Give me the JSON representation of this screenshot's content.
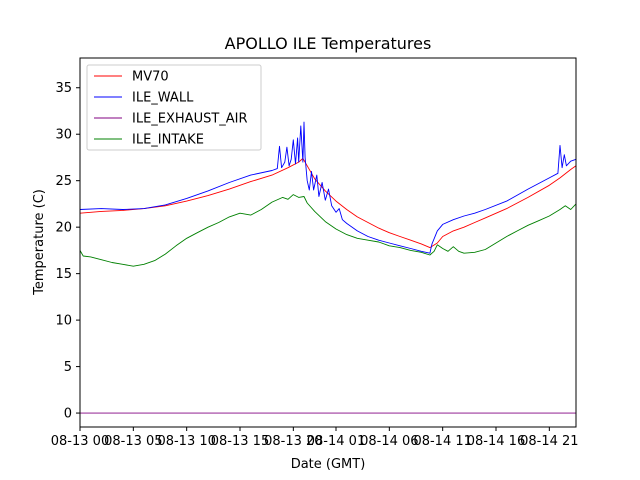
{
  "chart_data": {
    "type": "line",
    "title": "APOLLO ILE Temperatures",
    "xlabel": "Date (GMT)",
    "ylabel": "Temperature (C)",
    "xlim_hours": [
      0,
      46.5
    ],
    "ylim": [
      -1.5,
      38.2
    ],
    "yticks": [
      0,
      5,
      10,
      15,
      20,
      25,
      30,
      35
    ],
    "xticks": [
      {
        "hour": 0,
        "label": "08-13 00"
      },
      {
        "hour": 5,
        "label": "08-13 05"
      },
      {
        "hour": 10,
        "label": "08-13 10"
      },
      {
        "hour": 15,
        "label": "08-13 15"
      },
      {
        "hour": 20,
        "label": "08-13 20"
      },
      {
        "hour": 24,
        "label": "08-14 01"
      },
      {
        "hour": 29,
        "label": "08-14 06"
      },
      {
        "hour": 34,
        "label": "08-14 11"
      },
      {
        "hour": 39,
        "label": "08-14 16"
      },
      {
        "hour": 44,
        "label": "08-14 21"
      }
    ],
    "legend_position": "upper-left",
    "series": [
      {
        "name": "MV70",
        "color": "#ff0000",
        "points": [
          [
            0,
            21.5
          ],
          [
            2,
            21.7
          ],
          [
            4,
            21.8
          ],
          [
            6,
            22.0
          ],
          [
            8,
            22.3
          ],
          [
            10,
            22.8
          ],
          [
            12,
            23.4
          ],
          [
            14,
            24.1
          ],
          [
            16,
            24.9
          ],
          [
            18,
            25.6
          ],
          [
            19.5,
            26.4
          ],
          [
            20.5,
            27.0
          ],
          [
            20.9,
            27.4
          ],
          [
            21.3,
            26.6
          ],
          [
            22,
            25.2
          ],
          [
            23,
            23.9
          ],
          [
            24,
            22.8
          ],
          [
            25,
            21.9
          ],
          [
            26,
            21.1
          ],
          [
            27,
            20.5
          ],
          [
            28,
            19.9
          ],
          [
            29,
            19.4
          ],
          [
            30,
            19.0
          ],
          [
            31,
            18.6
          ],
          [
            32,
            18.2
          ],
          [
            32.8,
            17.8
          ],
          [
            33.5,
            18.3
          ],
          [
            34,
            19.0
          ],
          [
            35,
            19.6
          ],
          [
            36,
            20.0
          ],
          [
            37,
            20.5
          ],
          [
            38,
            21.0
          ],
          [
            40,
            22.0
          ],
          [
            42,
            23.2
          ],
          [
            44,
            24.5
          ],
          [
            45,
            25.3
          ],
          [
            46,
            26.2
          ],
          [
            46.5,
            26.6
          ]
        ]
      },
      {
        "name": "ILE_WALL",
        "color": "#0000ff",
        "points": [
          [
            0,
            21.9
          ],
          [
            2,
            22.0
          ],
          [
            4,
            21.9
          ],
          [
            6,
            22.0
          ],
          [
            8,
            22.4
          ],
          [
            10,
            23.1
          ],
          [
            12,
            23.9
          ],
          [
            14,
            24.8
          ],
          [
            16,
            25.6
          ],
          [
            18,
            26.1
          ],
          [
            18.5,
            26.3
          ],
          [
            18.7,
            28.7
          ],
          [
            18.9,
            26.4
          ],
          [
            19.2,
            27.0
          ],
          [
            19.4,
            28.6
          ],
          [
            19.6,
            26.6
          ],
          [
            19.8,
            27.3
          ],
          [
            20.0,
            29.4
          ],
          [
            20.2,
            26.8
          ],
          [
            20.4,
            29.6
          ],
          [
            20.5,
            27.0
          ],
          [
            20.7,
            30.9
          ],
          [
            20.9,
            27.0
          ],
          [
            21.0,
            31.3
          ],
          [
            21.1,
            27.5
          ],
          [
            21.3,
            25.0
          ],
          [
            21.5,
            24.0
          ],
          [
            21.7,
            26.0
          ],
          [
            21.9,
            24.0
          ],
          [
            22.2,
            25.6
          ],
          [
            22.4,
            23.3
          ],
          [
            22.7,
            24.8
          ],
          [
            23.0,
            22.9
          ],
          [
            23.3,
            24.1
          ],
          [
            23.6,
            22.3
          ],
          [
            24.0,
            21.6
          ],
          [
            24.3,
            22.0
          ],
          [
            24.6,
            20.8
          ],
          [
            25,
            20.4
          ],
          [
            26,
            19.6
          ],
          [
            27,
            19.0
          ],
          [
            28,
            18.6
          ],
          [
            29,
            18.3
          ],
          [
            30,
            18.0
          ],
          [
            31,
            17.7
          ],
          [
            32,
            17.4
          ],
          [
            32.8,
            17.2
          ],
          [
            33.0,
            18.2
          ],
          [
            33.5,
            19.6
          ],
          [
            34,
            20.3
          ],
          [
            35,
            20.8
          ],
          [
            36,
            21.2
          ],
          [
            37,
            21.5
          ],
          [
            38,
            21.9
          ],
          [
            40,
            22.8
          ],
          [
            42,
            24.1
          ],
          [
            44,
            25.3
          ],
          [
            44.8,
            25.8
          ],
          [
            45.0,
            28.8
          ],
          [
            45.2,
            26.4
          ],
          [
            45.4,
            27.8
          ],
          [
            45.6,
            26.6
          ],
          [
            46,
            27.1
          ],
          [
            46.5,
            27.3
          ]
        ]
      },
      {
        "name": "ILE_EXHAUST_AIR",
        "color": "#800080",
        "points": [
          [
            0,
            0.0
          ],
          [
            46.5,
            0.0
          ]
        ]
      },
      {
        "name": "ILE_INTAKE",
        "color": "#008000",
        "points": [
          [
            0,
            17.5
          ],
          [
            0.3,
            16.9
          ],
          [
            1,
            16.8
          ],
          [
            2,
            16.5
          ],
          [
            3,
            16.2
          ],
          [
            4,
            16.0
          ],
          [
            5,
            15.8
          ],
          [
            6,
            16.0
          ],
          [
            7,
            16.4
          ],
          [
            8,
            17.1
          ],
          [
            9,
            18.0
          ],
          [
            10,
            18.8
          ],
          [
            11,
            19.4
          ],
          [
            12,
            20.0
          ],
          [
            13,
            20.5
          ],
          [
            14,
            21.1
          ],
          [
            15,
            21.5
          ],
          [
            16,
            21.3
          ],
          [
            17,
            21.9
          ],
          [
            18,
            22.7
          ],
          [
            19,
            23.2
          ],
          [
            19.5,
            23.0
          ],
          [
            20,
            23.5
          ],
          [
            20.5,
            23.2
          ],
          [
            21,
            23.3
          ],
          [
            21.3,
            22.6
          ],
          [
            22,
            21.7
          ],
          [
            23,
            20.6
          ],
          [
            24,
            19.8
          ],
          [
            25,
            19.2
          ],
          [
            26,
            18.8
          ],
          [
            27,
            18.6
          ],
          [
            28,
            18.4
          ],
          [
            29,
            18.0
          ],
          [
            30,
            17.8
          ],
          [
            31,
            17.5
          ],
          [
            32,
            17.3
          ],
          [
            32.8,
            17.0
          ],
          [
            33.2,
            17.4
          ],
          [
            33.5,
            18.1
          ],
          [
            34,
            17.7
          ],
          [
            34.5,
            17.4
          ],
          [
            35,
            17.9
          ],
          [
            35.5,
            17.4
          ],
          [
            36,
            17.2
          ],
          [
            37,
            17.3
          ],
          [
            38,
            17.6
          ],
          [
            39,
            18.3
          ],
          [
            40,
            19.0
          ],
          [
            41,
            19.6
          ],
          [
            42,
            20.2
          ],
          [
            43,
            20.7
          ],
          [
            44,
            21.2
          ],
          [
            45,
            21.9
          ],
          [
            45.5,
            22.3
          ],
          [
            46,
            21.9
          ],
          [
            46.5,
            22.5
          ]
        ]
      }
    ]
  }
}
